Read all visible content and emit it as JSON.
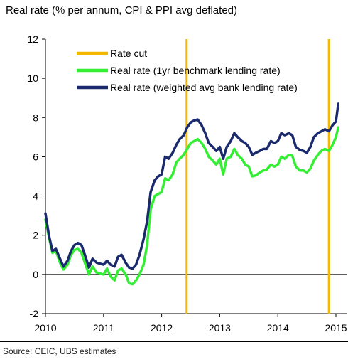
{
  "chart_data": {
    "type": "line",
    "title": "Real rate (% per annum, CPI & PPI avg deflated)",
    "source": "Source: CEIC, UBS estimates",
    "ylim": [
      -2,
      12
    ],
    "xlim": [
      2010,
      2015
    ],
    "y_ticks": [
      "12",
      "10",
      "8",
      "6",
      "4",
      "2",
      "0",
      "-2"
    ],
    "y_tick_values": [
      12,
      10,
      8,
      6,
      4,
      2,
      0,
      -2
    ],
    "x_ticks": [
      "2010",
      "2011",
      "2012",
      "2013",
      "2014",
      "2015"
    ],
    "x_tick_values": [
      2010,
      2011,
      2012,
      2013,
      2014,
      2015
    ],
    "legend_placement": "top-center",
    "rate_cuts": {
      "name": "Rate cut",
      "color": "#f5b800",
      "x": [
        2012.43,
        2014.88
      ]
    },
    "series": [
      {
        "name": "Real rate (1yr benchmark lending rate)",
        "color": "#33ee33",
        "points": [
          [
            2010.0,
            2.8
          ],
          [
            2010.06,
            1.9
          ],
          [
            2010.12,
            1.1
          ],
          [
            2010.18,
            1.2
          ],
          [
            2010.25,
            0.6
          ],
          [
            2010.31,
            0.25
          ],
          [
            2010.38,
            0.5
          ],
          [
            2010.44,
            1.0
          ],
          [
            2010.5,
            1.25
          ],
          [
            2010.56,
            1.3
          ],
          [
            2010.62,
            1.1
          ],
          [
            2010.69,
            0.5
          ],
          [
            2010.75,
            0.0
          ],
          [
            2010.81,
            0.4
          ],
          [
            2010.88,
            0.1
          ],
          [
            2010.94,
            0.05
          ],
          [
            2011.0,
            0.0
          ],
          [
            2011.06,
            0.3
          ],
          [
            2011.12,
            -0.1
          ],
          [
            2011.19,
            -0.3
          ],
          [
            2011.25,
            0.2
          ],
          [
            2011.31,
            0.3
          ],
          [
            2011.38,
            0.0
          ],
          [
            2011.44,
            -0.45
          ],
          [
            2011.5,
            -0.5
          ],
          [
            2011.56,
            -0.3
          ],
          [
            2011.62,
            0.0
          ],
          [
            2011.69,
            0.5
          ],
          [
            2011.75,
            1.5
          ],
          [
            2011.81,
            3.3
          ],
          [
            2011.88,
            4.0
          ],
          [
            2011.94,
            4.1
          ],
          [
            2012.0,
            4.2
          ],
          [
            2012.06,
            4.9
          ],
          [
            2012.12,
            4.8
          ],
          [
            2012.19,
            5.1
          ],
          [
            2012.25,
            5.7
          ],
          [
            2012.31,
            5.9
          ],
          [
            2012.38,
            6.1
          ],
          [
            2012.44,
            6.4
          ],
          [
            2012.5,
            6.7
          ],
          [
            2012.56,
            6.8
          ],
          [
            2012.62,
            6.9
          ],
          [
            2012.69,
            6.7
          ],
          [
            2012.75,
            6.4
          ],
          [
            2012.81,
            6.0
          ],
          [
            2012.88,
            5.8
          ],
          [
            2012.94,
            5.6
          ],
          [
            2013.0,
            5.9
          ],
          [
            2013.06,
            5.1
          ],
          [
            2013.12,
            5.9
          ],
          [
            2013.19,
            6.0
          ],
          [
            2013.25,
            6.4
          ],
          [
            2013.31,
            6.1
          ],
          [
            2013.38,
            5.9
          ],
          [
            2013.44,
            5.6
          ],
          [
            2013.5,
            5.5
          ],
          [
            2013.56,
            5.0
          ],
          [
            2013.62,
            5.05
          ],
          [
            2013.69,
            5.2
          ],
          [
            2013.75,
            5.3
          ],
          [
            2013.81,
            5.35
          ],
          [
            2013.88,
            5.6
          ],
          [
            2013.94,
            5.5
          ],
          [
            2014.0,
            5.6
          ],
          [
            2014.06,
            6.0
          ],
          [
            2014.12,
            5.9
          ],
          [
            2014.19,
            6.1
          ],
          [
            2014.25,
            6.05
          ],
          [
            2014.31,
            5.5
          ],
          [
            2014.38,
            5.3
          ],
          [
            2014.44,
            5.3
          ],
          [
            2014.5,
            5.2
          ],
          [
            2014.56,
            5.4
          ],
          [
            2014.62,
            5.8
          ],
          [
            2014.69,
            6.1
          ],
          [
            2014.75,
            6.3
          ],
          [
            2014.81,
            6.4
          ],
          [
            2014.88,
            6.3
          ],
          [
            2014.94,
            6.6
          ],
          [
            2015.0,
            7.0
          ],
          [
            2015.04,
            7.5
          ]
        ]
      },
      {
        "name": "Real rate (weighted avg bank lending rate)",
        "color": "#1a2a6c",
        "points": [
          [
            2010.0,
            3.1
          ],
          [
            2010.06,
            2.0
          ],
          [
            2010.12,
            1.2
          ],
          [
            2010.18,
            1.3
          ],
          [
            2010.25,
            0.8
          ],
          [
            2010.31,
            0.4
          ],
          [
            2010.38,
            0.7
          ],
          [
            2010.44,
            1.2
          ],
          [
            2010.5,
            1.5
          ],
          [
            2010.56,
            1.6
          ],
          [
            2010.62,
            1.5
          ],
          [
            2010.69,
            0.9
          ],
          [
            2010.75,
            0.35
          ],
          [
            2010.81,
            0.8
          ],
          [
            2010.88,
            0.6
          ],
          [
            2010.94,
            0.55
          ],
          [
            2011.0,
            0.5
          ],
          [
            2011.06,
            0.7
          ],
          [
            2011.12,
            0.5
          ],
          [
            2011.19,
            0.4
          ],
          [
            2011.25,
            0.9
          ],
          [
            2011.31,
            1.0
          ],
          [
            2011.38,
            0.6
          ],
          [
            2011.44,
            0.35
          ],
          [
            2011.5,
            0.3
          ],
          [
            2011.56,
            0.5
          ],
          [
            2011.62,
            1.0
          ],
          [
            2011.69,
            1.8
          ],
          [
            2011.75,
            2.7
          ],
          [
            2011.81,
            4.2
          ],
          [
            2011.88,
            4.8
          ],
          [
            2011.94,
            5.0
          ],
          [
            2012.0,
            5.1
          ],
          [
            2012.06,
            6.0
          ],
          [
            2012.12,
            5.9
          ],
          [
            2012.19,
            6.2
          ],
          [
            2012.25,
            6.6
          ],
          [
            2012.31,
            6.9
          ],
          [
            2012.38,
            7.1
          ],
          [
            2012.44,
            7.5
          ],
          [
            2012.5,
            7.75
          ],
          [
            2012.56,
            7.85
          ],
          [
            2012.62,
            7.9
          ],
          [
            2012.69,
            7.6
          ],
          [
            2012.75,
            7.2
          ],
          [
            2012.81,
            6.7
          ],
          [
            2012.88,
            6.5
          ],
          [
            2012.94,
            6.3
          ],
          [
            2013.0,
            6.5
          ],
          [
            2013.06,
            5.9
          ],
          [
            2013.12,
            6.5
          ],
          [
            2013.19,
            6.8
          ],
          [
            2013.25,
            7.2
          ],
          [
            2013.31,
            7.0
          ],
          [
            2013.38,
            6.8
          ],
          [
            2013.44,
            6.7
          ],
          [
            2013.5,
            6.5
          ],
          [
            2013.56,
            6.1
          ],
          [
            2013.62,
            6.2
          ],
          [
            2013.69,
            6.3
          ],
          [
            2013.75,
            6.4
          ],
          [
            2013.81,
            6.4
          ],
          [
            2013.88,
            6.8
          ],
          [
            2013.94,
            6.7
          ],
          [
            2014.0,
            6.8
          ],
          [
            2014.06,
            7.2
          ],
          [
            2014.12,
            7.1
          ],
          [
            2014.19,
            7.2
          ],
          [
            2014.25,
            7.1
          ],
          [
            2014.31,
            6.5
          ],
          [
            2014.38,
            6.35
          ],
          [
            2014.44,
            6.3
          ],
          [
            2014.5,
            6.2
          ],
          [
            2014.56,
            6.5
          ],
          [
            2014.62,
            7.0
          ],
          [
            2014.69,
            7.2
          ],
          [
            2014.75,
            7.3
          ],
          [
            2014.81,
            7.4
          ],
          [
            2014.88,
            7.3
          ],
          [
            2014.94,
            7.6
          ],
          [
            2015.0,
            7.8
          ],
          [
            2015.04,
            8.7
          ]
        ]
      }
    ]
  }
}
